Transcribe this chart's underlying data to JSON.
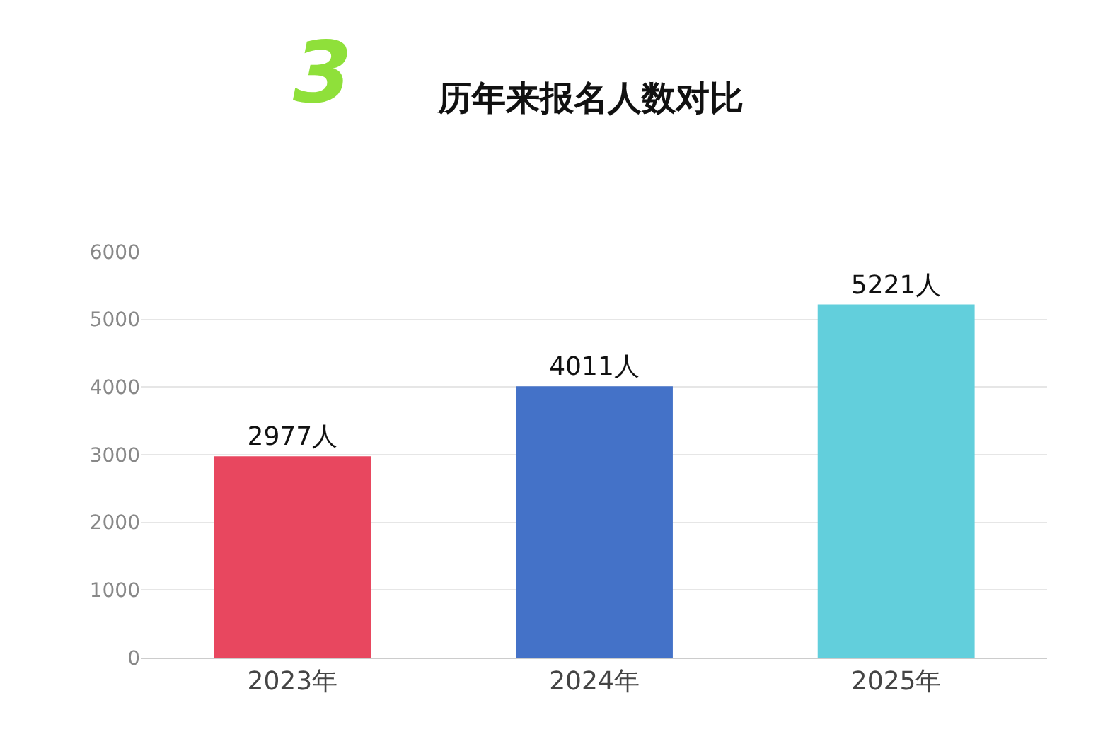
{
  "chart_data": {
    "type": "bar",
    "title": "历年来报名人数对比",
    "annotations": [
      "3"
    ],
    "categories": [
      "2023年",
      "2024年",
      "2025年"
    ],
    "values": [
      2977,
      4011,
      5221
    ],
    "colors": [
      "#e8475f",
      "#4472c8",
      "#62cfdc"
    ],
    "value_labels": [
      "2977人",
      "4011人",
      "5221人"
    ],
    "ylim": [
      0,
      6000
    ],
    "yticks": [
      0,
      1000,
      2000,
      3000,
      4000,
      5000,
      6000
    ],
    "grid": "y",
    "legend": false
  }
}
